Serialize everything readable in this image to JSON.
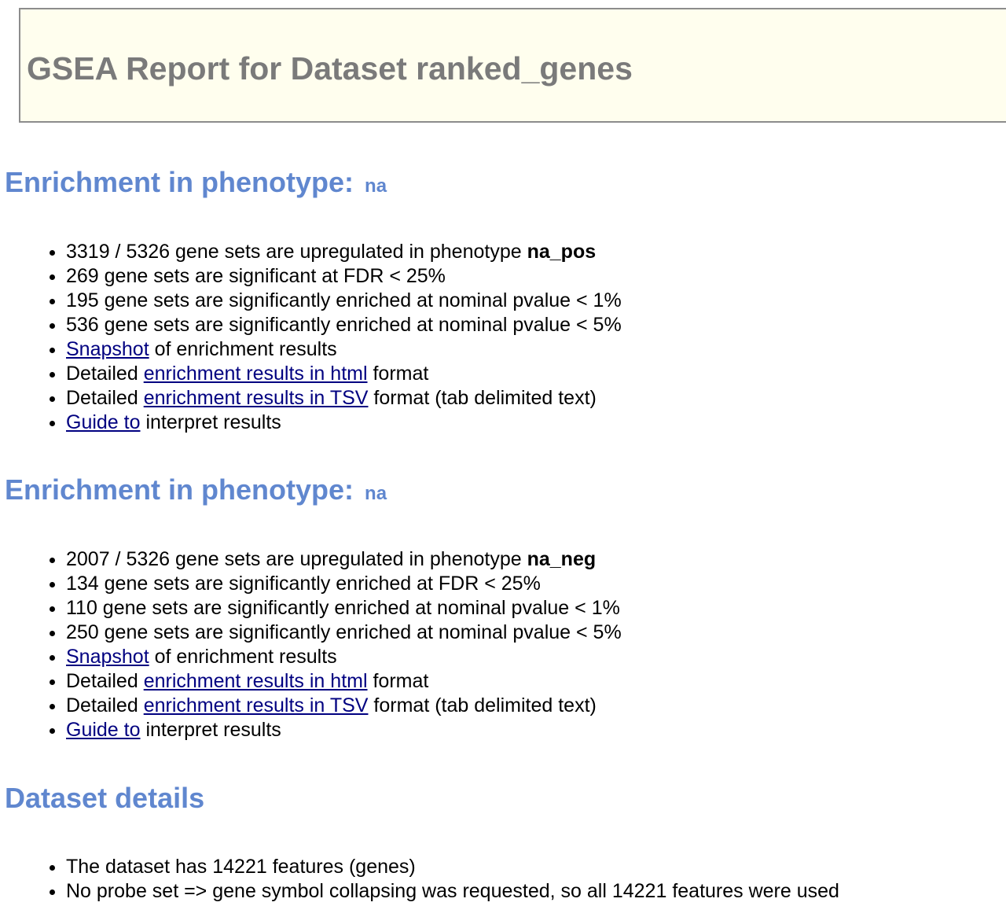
{
  "title": "GSEA Report for Dataset ranked_genes",
  "sections": [
    {
      "heading": "Enrichment in phenotype:",
      "phenotype": "na",
      "upregulated": {
        "prefix": "3319 / 5326 gene sets are upregulated in phenotype",
        "value": "na_pos"
      },
      "stats": [
        "269 gene sets are significant at FDR < 25%",
        "195 gene sets are significantly enriched at nominal pvalue < 1%",
        "536 gene sets are significantly enriched at nominal pvalue < 5%"
      ],
      "snapshot": {
        "link": "Snapshot",
        "suffix": "of enrichment results"
      },
      "html_detail": {
        "prefix": "Detailed",
        "link": "enrichment results in html",
        "suffix": "format"
      },
      "tsv_detail": {
        "prefix": "Detailed",
        "link": "enrichment results in TSV",
        "suffix": "format (tab delimited text)"
      },
      "guide": {
        "link": "Guide to",
        "suffix": "interpret results"
      }
    },
    {
      "heading": "Enrichment in phenotype:",
      "phenotype": "na",
      "upregulated": {
        "prefix": "2007 / 5326 gene sets are upregulated in phenotype",
        "value": "na_neg"
      },
      "stats": [
        "134 gene sets are significantly enriched at FDR < 25%",
        "110 gene sets are significantly enriched at nominal pvalue < 1%",
        "250 gene sets are significantly enriched at nominal pvalue < 5%"
      ],
      "snapshot": {
        "link": "Snapshot",
        "suffix": "of enrichment results"
      },
      "html_detail": {
        "prefix": "Detailed",
        "link": "enrichment results in html",
        "suffix": "format"
      },
      "tsv_detail": {
        "prefix": "Detailed",
        "link": "enrichment results in TSV",
        "suffix": "format (tab delimited text)"
      },
      "guide": {
        "link": "Guide to",
        "suffix": "interpret results"
      }
    }
  ],
  "dataset": {
    "heading": "Dataset details",
    "items": [
      "The dataset has 14221 features (genes)",
      "No probe set => gene symbol collapsing was requested, so all 14221 features were used"
    ]
  },
  "colors": {
    "heading": "#6087cf",
    "title": "#7a7a7a",
    "title_bg": "#fffeee",
    "link": "#000080"
  }
}
